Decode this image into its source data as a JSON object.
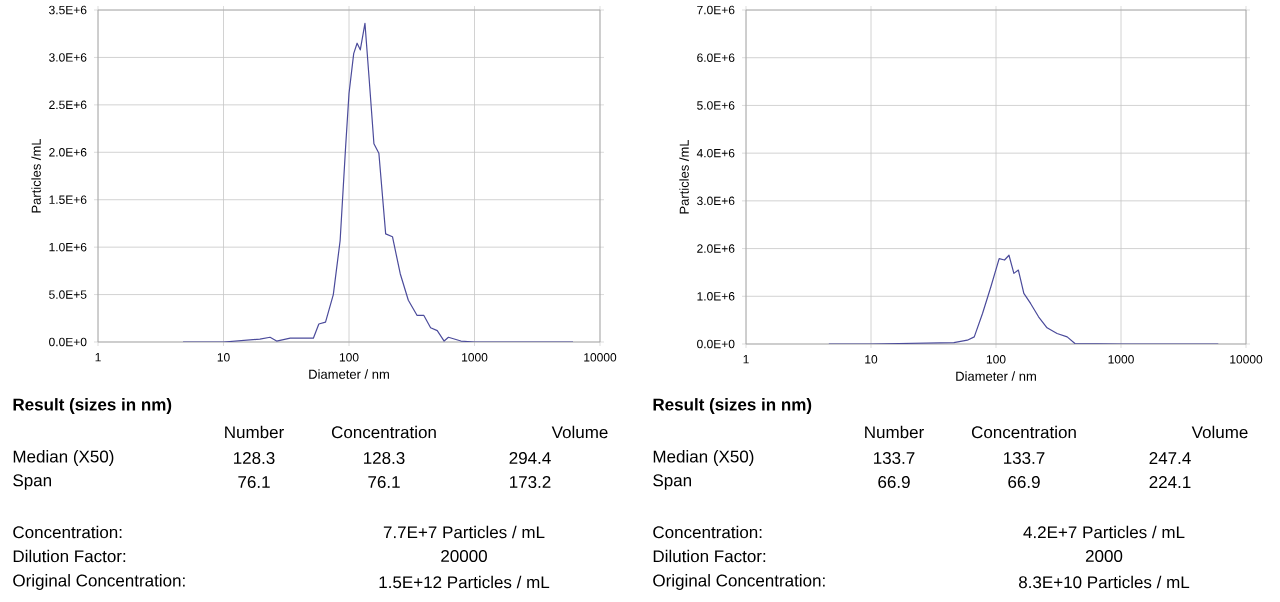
{
  "chart_data": [
    {
      "type": "line",
      "xlabel": "Diameter / nm",
      "ylabel": "Particles /mL",
      "log": "x",
      "grid": true,
      "marker": "none",
      "line_style": "solid",
      "xlim": [
        1,
        10000
      ],
      "ylim": [
        0,
        3500000
      ],
      "xticks": [
        1,
        10,
        100,
        1000,
        10000
      ],
      "yticks": [
        {
          "value": 0,
          "label": "0.0E+0"
        },
        {
          "value": 500000,
          "label": "5.0E+5"
        },
        {
          "value": 1000000,
          "label": "1.0E+6"
        },
        {
          "value": 1500000,
          "label": "1.5E+6"
        },
        {
          "value": 2000000,
          "label": "2.0E+6"
        },
        {
          "value": 2500000,
          "label": "2.5E+6"
        },
        {
          "value": 3000000,
          "label": "3.0E+6"
        },
        {
          "value": 3500000,
          "label": "3.5E+6"
        }
      ],
      "series": [
        {
          "color": "#4b4b9b",
          "x": [
            4.76,
            10,
            19.5,
            23.5,
            26.5,
            34,
            52,
            57.5,
            65,
            75,
            85,
            94,
            100,
            109,
            116,
            123,
            134,
            145,
            158,
            173,
            196,
            222,
            256,
            297,
            349,
            395,
            447,
            505,
            573,
            620,
            780,
            1000,
            6100
          ],
          "values": [
            0,
            0,
            30000,
            50000,
            10000,
            40000,
            40000,
            190000,
            210000,
            500000,
            1070000,
            2060000,
            2620000,
            3040000,
            3150000,
            3080000,
            3360000,
            2760000,
            2090000,
            1990000,
            1140000,
            1110000,
            720000,
            440000,
            280000,
            280000,
            150000,
            120000,
            10000,
            50000,
            10000,
            0,
            0
          ]
        }
      ],
      "annotations": [
        "Result (sizes in nm)",
        "Number",
        "Concentration",
        "Volume",
        "Median (X50)",
        "128.3",
        "128.3",
        "294.4",
        "Span",
        "76.1",
        "76.1",
        "173.2",
        "Concentration:",
        "7.7E+7 Particles / mL",
        "Dilution Factor:",
        "20000",
        "Original Concentration:",
        "1.5E+12 Particles / mL"
      ]
    },
    {
      "type": "line",
      "xlabel": "Diameter / nm",
      "ylabel": "Particles /mL",
      "log": "x",
      "grid": true,
      "marker": "none",
      "line_style": "solid",
      "xlim": [
        1,
        10000
      ],
      "ylim": [
        0,
        7000000
      ],
      "xticks": [
        1,
        10,
        100,
        1000,
        10000
      ],
      "yticks": [
        {
          "value": 0,
          "label": "0.0E+0"
        },
        {
          "value": 1000000,
          "label": "1.0E+6"
        },
        {
          "value": 2000000,
          "label": "2.0E+6"
        },
        {
          "value": 3000000,
          "label": "3.0E+6"
        },
        {
          "value": 4000000,
          "label": "4.0E+6"
        },
        {
          "value": 5000000,
          "label": "5.0E+6"
        },
        {
          "value": 6000000,
          "label": "6.0E+6"
        },
        {
          "value": 7000000,
          "label": "7.0E+6"
        }
      ],
      "series": [
        {
          "color": "#4b4b9b",
          "x": [
            4.6,
            10,
            46,
            59,
            67,
            78,
            91,
            106,
            117,
            127,
            139,
            151,
            167,
            189,
            219,
            256,
            308,
            371,
            428,
            1000,
            6000
          ],
          "values": [
            0,
            0,
            30000,
            80000,
            150000,
            640000,
            1200000,
            1790000,
            1760000,
            1860000,
            1480000,
            1550000,
            1060000,
            850000,
            570000,
            340000,
            220000,
            150000,
            10000,
            0,
            0
          ]
        }
      ],
      "annotations": [
        "Result (sizes in nm)",
        "Number",
        "Concentration",
        "Volume",
        "Median (X50)",
        "133.7",
        "133.7",
        "247.4",
        "Span",
        "66.9",
        "66.9",
        "224.1",
        "Concentration:",
        "4.2E+7 Particles / mL",
        "Dilution Factor:",
        "2000",
        "Original Concentration:",
        "8.3E+10 Particles / mL"
      ]
    }
  ]
}
